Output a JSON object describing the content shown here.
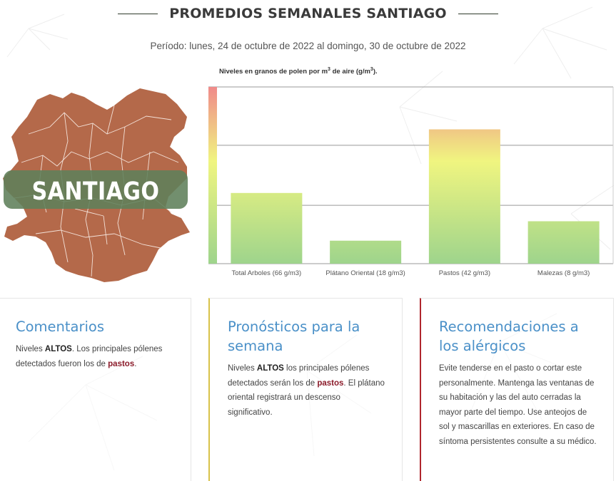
{
  "header": {
    "title": "PROMEDIOS SEMANALES SANTIAGO",
    "period": "Período: lunes, 24 de octubre de 2022 al domingo, 30 de octubre de 2022"
  },
  "map": {
    "label": "SANTIAGO",
    "fill_color": "#b4694a",
    "banner_color": "#5f7f5a"
  },
  "chart_note": {
    "prefix": "Niveles en granos de polen por m",
    "exp1": "3",
    "middle": " de aire (g/m",
    "exp2": "3",
    "suffix": ")."
  },
  "chart_data": {
    "type": "bar",
    "categories": [
      "Total Arboles (66 g/m3)",
      "Plátano Oriental (18 g/m3)",
      "Pastos (42 g/m3)",
      "Malezas (8 g/m3)"
    ],
    "level_ratio": [
      0.4,
      0.13,
      0.76,
      0.24
    ],
    "gradient": [
      "#f08a8a",
      "#f0f580",
      "#9ed48c"
    ]
  },
  "cards": [
    {
      "title": "Comentarios",
      "text_1": "Niveles ",
      "bold_1": "ALTOS",
      "text_2": ". Los principales pólenes detectados fueron los de ",
      "bold_2": "pastos",
      "text_3": "."
    },
    {
      "title": "Pronósticos para la semana",
      "text_1": "Niveles ",
      "bold_1": "ALTOS",
      "text_2": " los principales pólenes detectados serán los de ",
      "bold_2": "pastos",
      "text_3": ". El plátano oriental registrará un descenso significativo."
    },
    {
      "title": "Recomendaciones a los alérgicos",
      "text": "Evite tenderse en el pasto o cortar este personalmente. Mantenga las ventanas de su habitación y las del auto cerradas la mayor parte del tiempo. Use anteojos de sol y mascarillas en exteriores. En caso de síntoma persistentes consulte a su médico."
    }
  ]
}
